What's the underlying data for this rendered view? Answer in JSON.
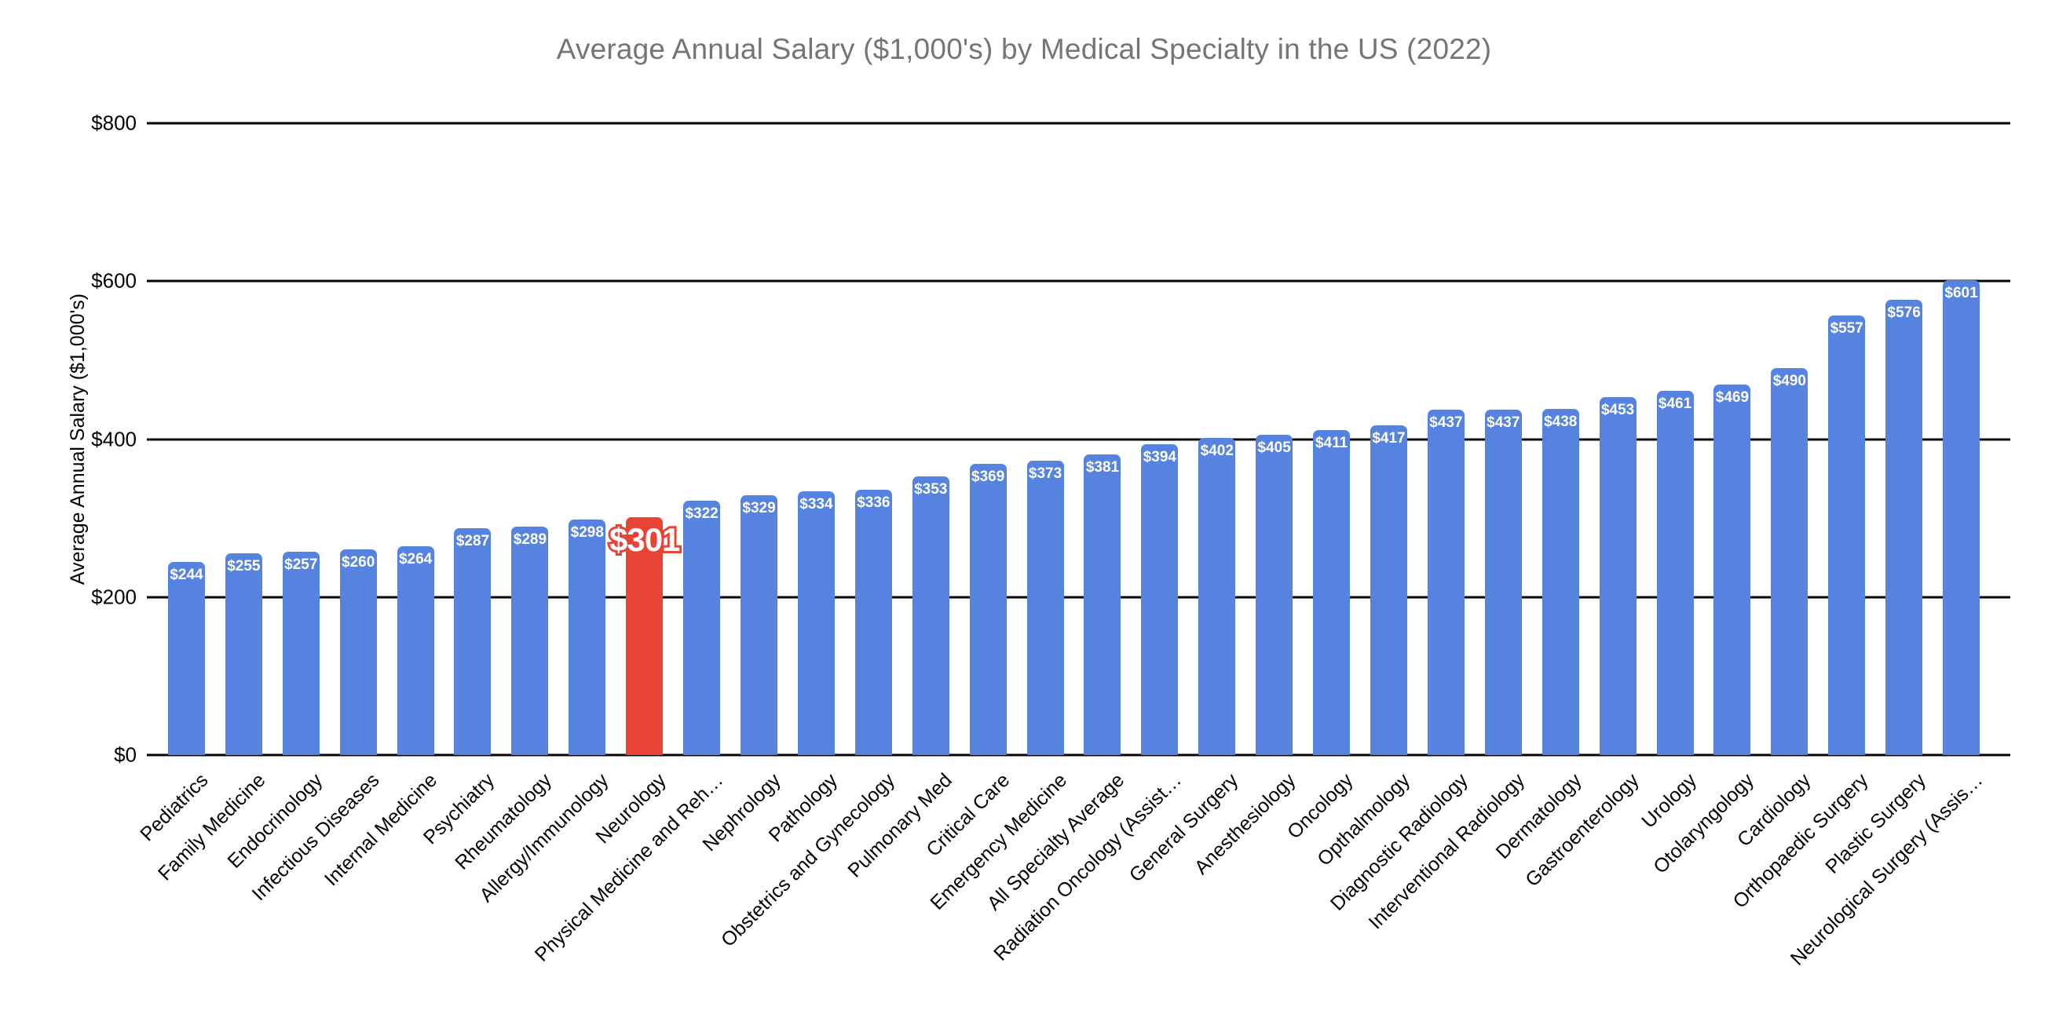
{
  "colors": {
    "bar": "#5683E0",
    "highlight": "#EA4335",
    "title_text": "#757575",
    "gridline": "#000000",
    "value_label_text": "#FFFFFF"
  },
  "y_axis": {
    "ticks_top_to_bottom": [
      "$800",
      "$600",
      "$400",
      "$200",
      "$0"
    ]
  },
  "chart_data": {
    "type": "bar",
    "title": "Average Annual Salary ($1,000's) by Medical Specialty in the US (2022)",
    "xlabel": "",
    "ylabel": "Average Annual Salary ($1,000's)",
    "ylim": [
      0,
      800
    ],
    "ytick_step": 200,
    "grid": true,
    "legend_position": "none",
    "categories": [
      "Pediatrics",
      "Family Medicine",
      "Endocrinology",
      "Infectious Diseases",
      "Internal Medicine",
      "Psychiatry",
      "Rheumatology",
      "Allergy/Immunology",
      "Neurology",
      "Physical Medicine and Reh…",
      "Nephrology",
      "Pathology",
      "Obstetrics and Gynecology",
      "Pulmonary Med",
      "Critical Care",
      "Emergency Medicine",
      "All Specialty Average",
      "Radiation Oncology (Assist…",
      "General Surgery",
      "Anesthesiology",
      "Oncology",
      "Opthalmology",
      "Diagnostic Radiology",
      "Interventional Radiology",
      "Dermatology",
      "Gastroenterology",
      "Urology",
      "Otolaryngology",
      "Cardiology",
      "Orthopaedic Surgery",
      "Plastic Surgery",
      "Neurological Surgery (Assis…"
    ],
    "values": [
      244,
      255,
      257,
      260,
      264,
      287,
      289,
      298,
      301,
      322,
      329,
      334,
      336,
      353,
      369,
      373,
      381,
      394,
      402,
      405,
      411,
      417,
      437,
      437,
      438,
      453,
      461,
      469,
      490,
      557,
      576,
      601
    ],
    "value_label_prefix": "$",
    "highlight": {
      "index": 8,
      "category": "Neurology",
      "value": 301,
      "label": "$301"
    }
  }
}
